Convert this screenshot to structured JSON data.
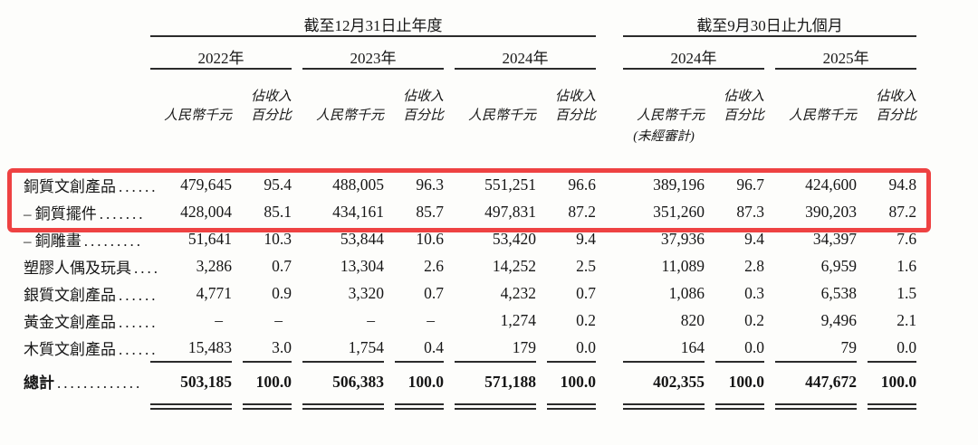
{
  "table": {
    "groups": [
      {
        "title": "截至12月31日止年度",
        "years": [
          "2022年",
          "2023年",
          "2024年"
        ]
      },
      {
        "title": "截至9月30日止九個月",
        "years": [
          "2024年",
          "2025年"
        ]
      }
    ],
    "column_headers": {
      "amount": "人民幣千元",
      "pct_line1": "佔收入",
      "pct_line2": "百分比",
      "unaudited_note": "(未經審計)"
    },
    "rows": [
      {
        "label": "銅質文創產品",
        "dots": "......",
        "values": [
          "479,645",
          "95.4",
          "488,005",
          "96.3",
          "551,251",
          "96.6",
          "389,196",
          "96.7",
          "424,600",
          "94.8"
        ],
        "highlighted": true
      },
      {
        "label": "– 銅質擺件",
        "dots": ".......",
        "values": [
          "428,004",
          "85.1",
          "434,161",
          "85.7",
          "497,831",
          "87.2",
          "351,260",
          "87.3",
          "390,203",
          "87.2"
        ],
        "highlighted": true
      },
      {
        "label": "– 銅雕畫",
        "dots": ".........",
        "values": [
          "51,641",
          "10.3",
          "53,844",
          "10.6",
          "53,420",
          "9.4",
          "37,936",
          "9.4",
          "34,397",
          "7.6"
        ]
      },
      {
        "label": "塑膠人偶及玩具",
        "dots": "....",
        "values": [
          "3,286",
          "0.7",
          "13,304",
          "2.6",
          "14,252",
          "2.5",
          "11,089",
          "2.8",
          "6,959",
          "1.6"
        ]
      },
      {
        "label": "銀質文創產品",
        "dots": "......",
        "values": [
          "4,771",
          "0.9",
          "3,320",
          "0.7",
          "4,232",
          "0.7",
          "1,086",
          "0.3",
          "6,538",
          "1.5"
        ]
      },
      {
        "label": "黃金文創產品",
        "dots": "......",
        "values": [
          "–",
          "–",
          "–",
          "–",
          "1,274",
          "0.2",
          "820",
          "0.2",
          "9,496",
          "2.1"
        ]
      },
      {
        "label": "木質文創產品",
        "dots": "......",
        "values": [
          "15,483",
          "3.0",
          "1,754",
          "0.4",
          "179",
          "0.0",
          "164",
          "0.0",
          "79",
          "0.0"
        ],
        "rule_below": true
      },
      {
        "label": "總計",
        "dots": ".............",
        "values": [
          "503,185",
          "100.0",
          "506,383",
          "100.0",
          "571,188",
          "100.0",
          "402,355",
          "100.0",
          "447,672",
          "100.0"
        ],
        "total": true
      }
    ]
  },
  "annotation": {
    "highlight_color": "#ee4242"
  }
}
